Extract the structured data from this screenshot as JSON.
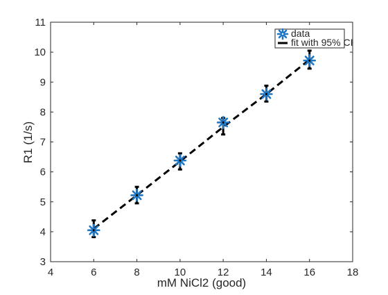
{
  "chart_data": {
    "type": "scatter",
    "title": "",
    "xlabel": "mM NiCl2 (good)",
    "ylabel": "R1 (1/s)",
    "xlim": [
      4,
      18
    ],
    "ylim": [
      3,
      11
    ],
    "x_ticks": [
      "4",
      "6",
      "8",
      "10",
      "12",
      "14",
      "16",
      "18"
    ],
    "y_ticks": [
      "3",
      "4",
      "5",
      "6",
      "7",
      "8",
      "9",
      "10",
      "11"
    ],
    "grid": false,
    "legend_position": "top-right",
    "series": [
      {
        "name": "data",
        "kind": "markers",
        "marker": "asterisk",
        "color": "#1f77c4",
        "x": [
          6,
          8,
          10,
          12,
          14,
          16
        ],
        "y": [
          4.05,
          5.22,
          6.38,
          7.65,
          8.6,
          9.72
        ]
      },
      {
        "name": "fit with 95% CI",
        "kind": "dashed-line-with-errorbars",
        "color": "#000000",
        "x": [
          6,
          8,
          10,
          12,
          14,
          16
        ],
        "y": [
          4.1,
          5.22,
          6.35,
          7.5,
          8.6,
          9.75
        ],
        "ci_low": [
          3.82,
          4.95,
          6.08,
          7.25,
          8.35,
          9.45
        ],
        "ci_high": [
          4.38,
          5.5,
          6.62,
          7.8,
          8.88,
          10.05
        ]
      }
    ]
  }
}
